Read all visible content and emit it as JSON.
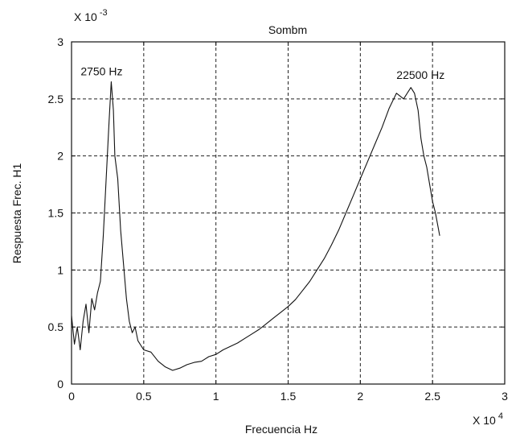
{
  "chart_data": {
    "type": "line",
    "title": "Sombm",
    "xlabel": "Frecuencia Hz",
    "ylabel": "Respuesta Frec. H1",
    "x_multiplier": "X 10",
    "x_exponent": "4",
    "y_multiplier": "X 10",
    "y_exponent": "-3",
    "xlim": [
      0,
      3
    ],
    "ylim": [
      0,
      3
    ],
    "xticks": [
      0,
      0.5,
      1,
      1.5,
      2,
      2.5,
      3
    ],
    "xtick_labels": [
      "0",
      "0.5",
      "1",
      "1.5",
      "2",
      "2.5",
      "3"
    ],
    "yticks": [
      0,
      0.5,
      1,
      1.5,
      2,
      2.5,
      3
    ],
    "ytick_labels": [
      "0",
      "0.5",
      "1",
      "1.5",
      "2",
      "2.5",
      "3"
    ],
    "grid": true,
    "line_color": "#111111",
    "annotations": [
      {
        "text": "2750 Hz",
        "x": 0.275,
        "y": 2.65
      },
      {
        "text": "22500 Hz",
        "x": 2.25,
        "y": 2.62
      }
    ],
    "series": [
      {
        "x": [
          0.0,
          0.02,
          0.04,
          0.06,
          0.08,
          0.1,
          0.12,
          0.14,
          0.16,
          0.18,
          0.2,
          0.22,
          0.24,
          0.26,
          0.275,
          0.29,
          0.3,
          0.32,
          0.34,
          0.36,
          0.38,
          0.4,
          0.42,
          0.44,
          0.46,
          0.5,
          0.55,
          0.6,
          0.65,
          0.7,
          0.75,
          0.8,
          0.85,
          0.9,
          0.95,
          1.0,
          1.05,
          1.1,
          1.15,
          1.2,
          1.25,
          1.3,
          1.35,
          1.4,
          1.45,
          1.5,
          1.55,
          1.6,
          1.65,
          1.7,
          1.75,
          1.8,
          1.85,
          1.9,
          1.95,
          2.0,
          2.05,
          2.1,
          2.15,
          2.2,
          2.25,
          2.3,
          2.35,
          2.375,
          2.4,
          2.42,
          2.44,
          2.46,
          2.48,
          2.5,
          2.52,
          2.55
        ],
        "y": [
          0.6,
          0.35,
          0.5,
          0.3,
          0.55,
          0.7,
          0.45,
          0.75,
          0.65,
          0.8,
          0.9,
          1.3,
          1.8,
          2.3,
          2.65,
          2.4,
          2.0,
          1.8,
          1.35,
          1.05,
          0.75,
          0.55,
          0.45,
          0.5,
          0.38,
          0.3,
          0.28,
          0.2,
          0.15,
          0.12,
          0.14,
          0.17,
          0.19,
          0.2,
          0.24,
          0.26,
          0.3,
          0.33,
          0.36,
          0.4,
          0.44,
          0.48,
          0.53,
          0.58,
          0.63,
          0.68,
          0.74,
          0.82,
          0.9,
          1.0,
          1.1,
          1.22,
          1.35,
          1.5,
          1.65,
          1.8,
          1.95,
          2.1,
          2.25,
          2.42,
          2.55,
          2.5,
          2.6,
          2.55,
          2.4,
          2.15,
          2.0,
          1.9,
          1.75,
          1.6,
          1.5,
          1.3
        ]
      }
    ]
  }
}
